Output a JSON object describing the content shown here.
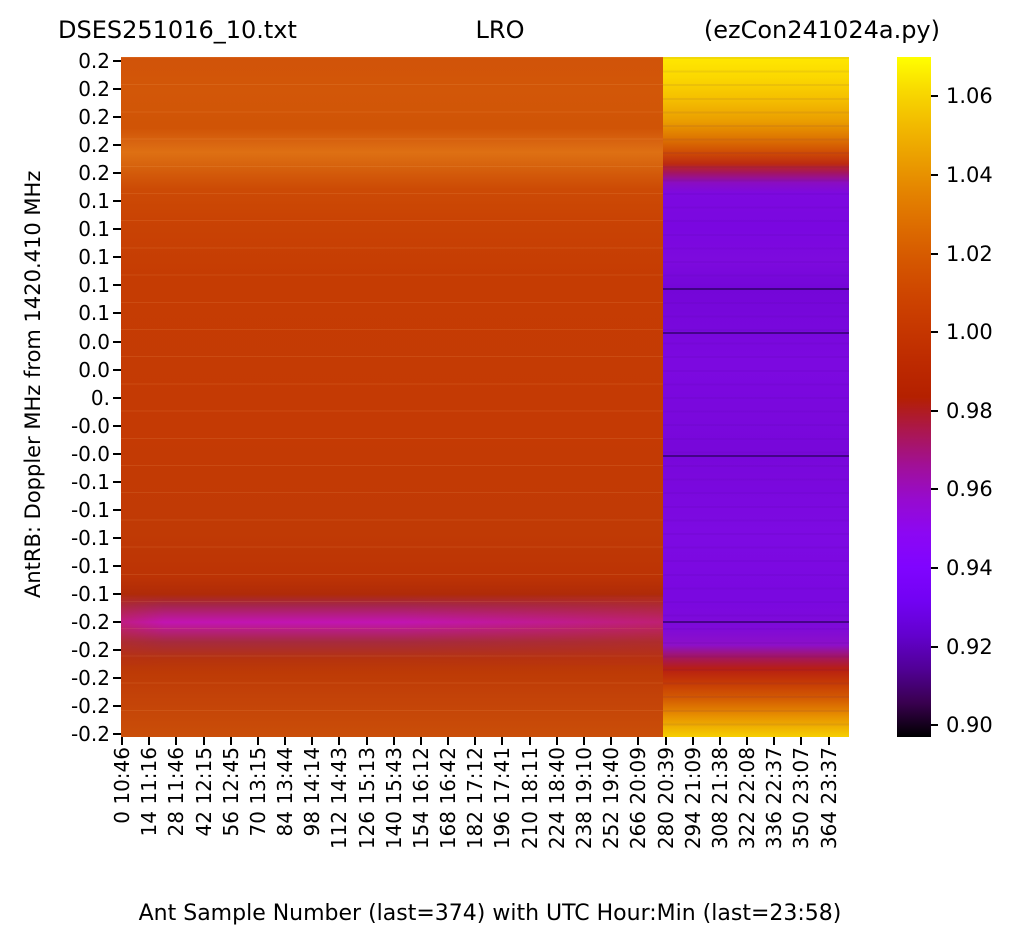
{
  "titles": {
    "left": "DSES251016_10.txt",
    "center": "LRO",
    "right": "(ezCon241024a.py)"
  },
  "y_axis": {
    "label": "AntRB:  Doppler MHz from 1420.410 MHz",
    "ticks": [
      "0.2",
      "0.2",
      "0.2",
      "0.2",
      "0.2",
      "0.1",
      "0.1",
      "0.1",
      "0.1",
      "0.1",
      "0.0",
      "0.0",
      "0.",
      "-0.0",
      "-0.0",
      "-0.1",
      "-0.1",
      "-0.1",
      "-0.1",
      "-0.1",
      "-0.2",
      "-0.2",
      "-0.2",
      "-0.2",
      "-0.2"
    ]
  },
  "x_axis": {
    "label": "Ant Sample Number (last=374) with UTC Hour:Min (last=23:58)",
    "ticks": [
      {
        "sample": 0,
        "label": "0 10:46"
      },
      {
        "sample": 14,
        "label": "14 11:16"
      },
      {
        "sample": 28,
        "label": "28 11:46"
      },
      {
        "sample": 42,
        "label": "42 12:15"
      },
      {
        "sample": 56,
        "label": "56 12:45"
      },
      {
        "sample": 70,
        "label": "70 13:15"
      },
      {
        "sample": 84,
        "label": "84 13:44"
      },
      {
        "sample": 98,
        "label": "98 14:14"
      },
      {
        "sample": 112,
        "label": "112 14:43"
      },
      {
        "sample": 126,
        "label": "126 15:13"
      },
      {
        "sample": 140,
        "label": "140 15:43"
      },
      {
        "sample": 154,
        "label": "154 16:12"
      },
      {
        "sample": 168,
        "label": "168 16:42"
      },
      {
        "sample": 182,
        "label": "182 17:12"
      },
      {
        "sample": 196,
        "label": "196 17:41"
      },
      {
        "sample": 210,
        "label": "210 18:11"
      },
      {
        "sample": 224,
        "label": "224 18:40"
      },
      {
        "sample": 238,
        "label": "238 19:10"
      },
      {
        "sample": 252,
        "label": "252 19:40"
      },
      {
        "sample": 266,
        "label": "266 20:09"
      },
      {
        "sample": 280,
        "label": "280 20:39"
      },
      {
        "sample": 294,
        "label": "294 21:09"
      },
      {
        "sample": 308,
        "label": "308 21:38"
      },
      {
        "sample": 322,
        "label": "322 22:08"
      },
      {
        "sample": 336,
        "label": "336 22:37"
      },
      {
        "sample": 350,
        "label": "350 23:07"
      },
      {
        "sample": 364,
        "label": "364 23:37"
      }
    ]
  },
  "colorbar": {
    "ticks": [
      {
        "value": 1.06,
        "label": "1.06"
      },
      {
        "value": 1.04,
        "label": "1.04"
      },
      {
        "value": 1.02,
        "label": "1.02"
      },
      {
        "value": 1.0,
        "label": "1.00"
      },
      {
        "value": 0.98,
        "label": "0.98"
      },
      {
        "value": 0.96,
        "label": "0.96"
      },
      {
        "value": 0.94,
        "label": "0.94"
      },
      {
        "value": 0.92,
        "label": "0.92"
      },
      {
        "value": 0.9,
        "label": "0.90"
      }
    ],
    "range": [
      0.897,
      1.07
    ],
    "colormap": "gnuplot"
  },
  "chart_data": {
    "type": "heatmap",
    "title": "DSES251016_10.txt  LRO  (ezCon241024a.py)",
    "xlabel": "Ant Sample Number (last=374) with UTC Hour:Min (last=23:58)",
    "ylabel": "AntRB:  Doppler MHz from 1420.410 MHz",
    "x_range_samples": [
      0,
      374
    ],
    "x_last_utc": "23:58",
    "y_range_mhz": [
      -0.25,
      0.25
    ],
    "color_range": [
      0.897,
      1.07
    ],
    "colormap": "gnuplot",
    "x_tick_samples": [
      0,
      14,
      28,
      42,
      56,
      70,
      84,
      98,
      112,
      126,
      140,
      154,
      168,
      182,
      196,
      210,
      224,
      238,
      252,
      266,
      280,
      294,
      308,
      322,
      336,
      350,
      364
    ],
    "x_tick_times": [
      "10:46",
      "11:16",
      "11:46",
      "12:15",
      "12:45",
      "13:15",
      "13:44",
      "14:14",
      "14:43",
      "15:13",
      "15:43",
      "16:12",
      "16:42",
      "17:12",
      "17:41",
      "18:11",
      "18:40",
      "19:10",
      "19:40",
      "20:09",
      "20:39",
      "21:09",
      "21:38",
      "22:08",
      "22:37",
      "23:07",
      "23:37"
    ],
    "regions": [
      {
        "samples": "0-279",
        "doppler_mhz": "+0.25 to +0.17",
        "approx_value": 1.02
      },
      {
        "samples": "0-279",
        "doppler_mhz": "+0.16 (bright band)",
        "approx_value": 1.03
      },
      {
        "samples": "0-279",
        "doppler_mhz": "+0.14 to -0.14",
        "approx_value": 1.0
      },
      {
        "samples": "0-279",
        "doppler_mhz": "-0.16 to -0.19 (magenta dip band)",
        "approx_value": 0.965
      },
      {
        "samples": "0-279",
        "doppler_mhz": "-0.20 to -0.25",
        "approx_value": 1.005
      },
      {
        "samples": "280-374",
        "doppler_mhz": "+0.25 to +0.21",
        "approx_value": 1.07
      },
      {
        "samples": "280-374",
        "doppler_mhz": "+0.20 to +0.17 (orange fade)",
        "approx_value": 1.02
      },
      {
        "samples": "280-374",
        "doppler_mhz": "+0.16 to -0.21 (purple block)",
        "approx_value": 0.93
      },
      {
        "samples": "280-374",
        "doppler_mhz": "-0.22 to -0.25 (yellow fade)",
        "approx_value": 1.06
      }
    ]
  }
}
